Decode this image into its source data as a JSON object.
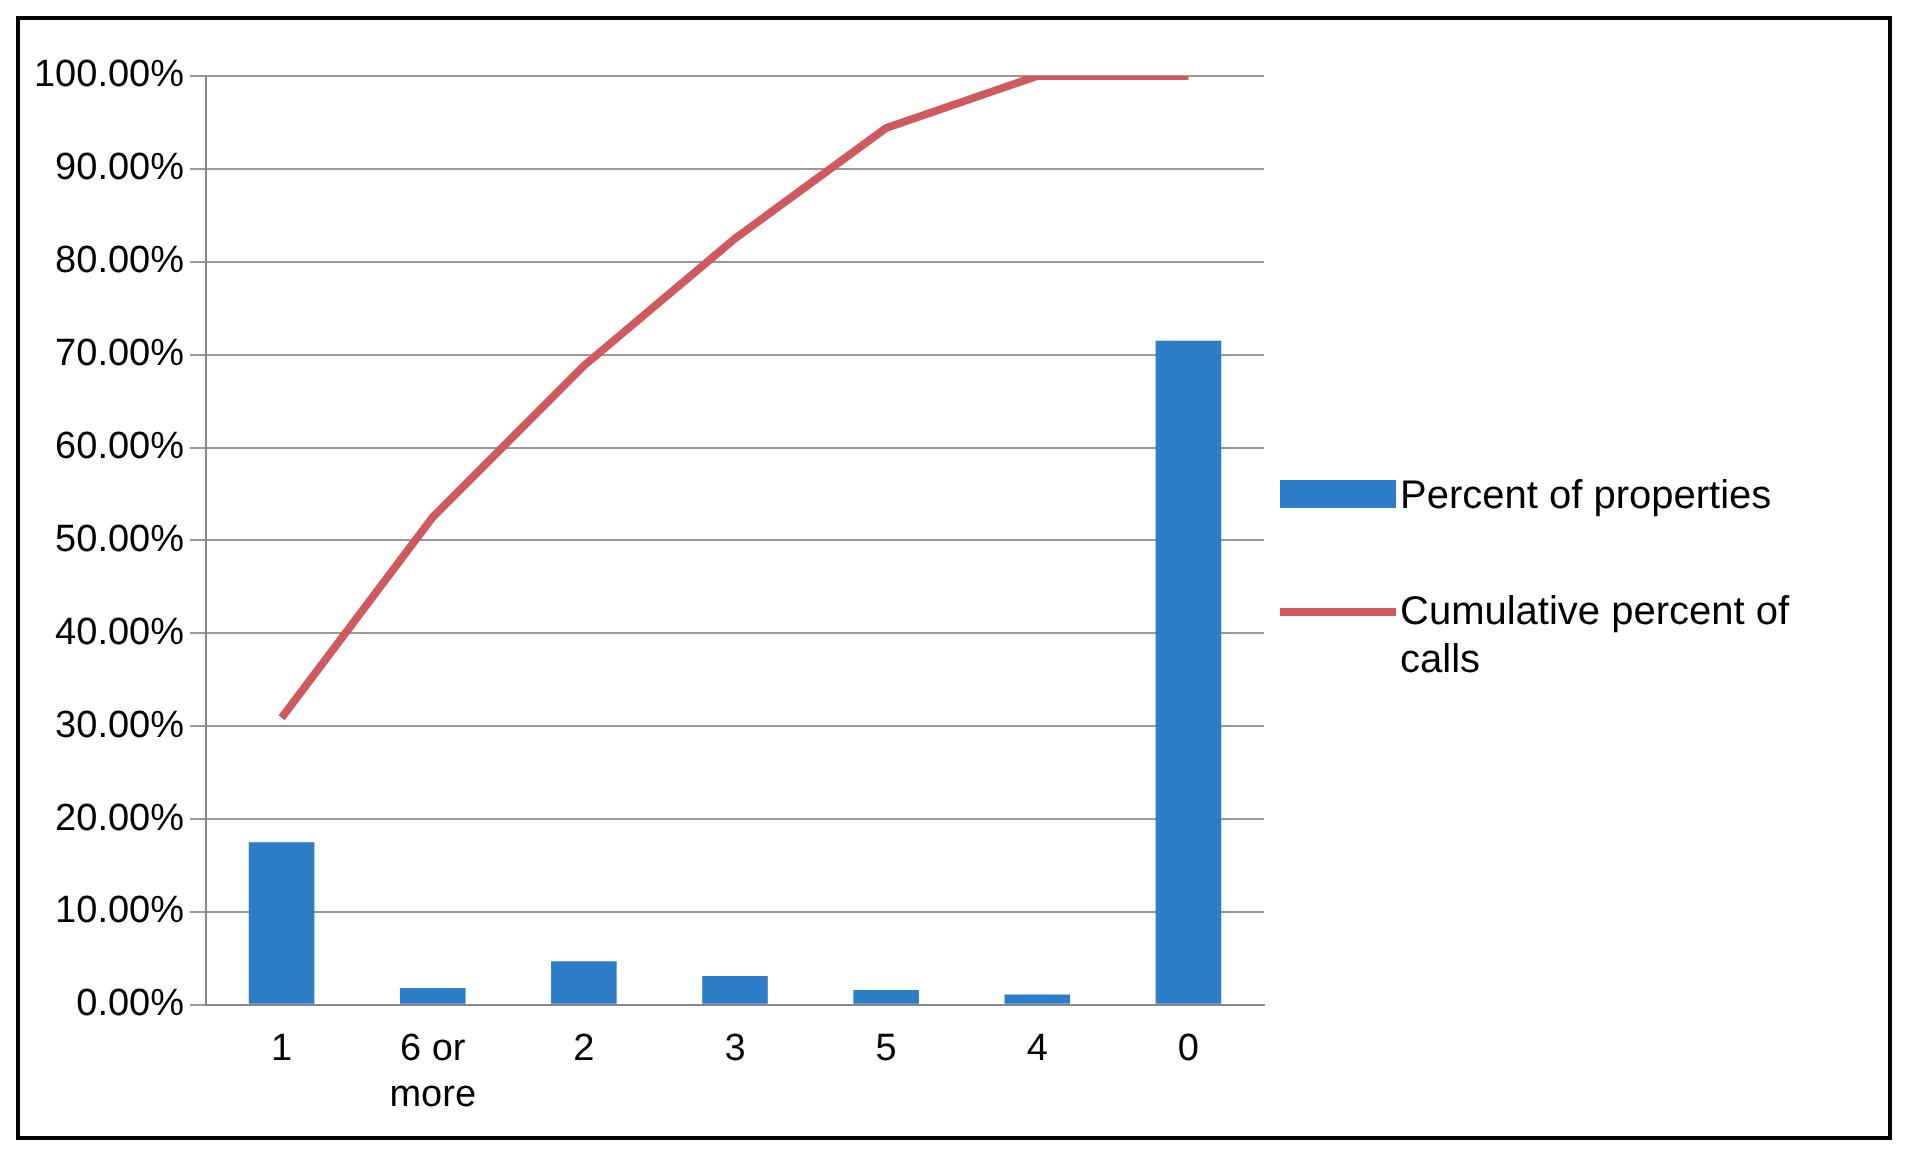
{
  "chart_data": {
    "type": "bar",
    "categories": [
      "1",
      "6 or more",
      "2",
      "3",
      "5",
      "4",
      "0"
    ],
    "series": [
      {
        "name": "Percent of properties",
        "color": "#2e7dc9",
        "values": [
          17.5,
          1.8,
          4.7,
          3.1,
          1.6,
          1.1,
          71.5
        ]
      },
      {
        "name": "Cumulative percent of calls",
        "type": "line",
        "color": "#d0595f",
        "values": [
          30.9,
          52.5,
          68.8,
          82.5,
          94.4,
          100,
          100
        ]
      }
    ],
    "ylim": [
      0,
      100
    ],
    "yticks": [
      {
        "value": 0,
        "label": "0.00%"
      },
      {
        "value": 10,
        "label": "10.00%"
      },
      {
        "value": 20,
        "label": "20.00%"
      },
      {
        "value": 30,
        "label": "30.00%"
      },
      {
        "value": 40,
        "label": "40.00%"
      },
      {
        "value": 50,
        "label": "50.00%"
      },
      {
        "value": 60,
        "label": "60.00%"
      },
      {
        "value": 70,
        "label": "70.00%"
      },
      {
        "value": 80,
        "label": "80.00%"
      },
      {
        "value": 90,
        "label": "90.00%"
      },
      {
        "value": 100,
        "label": "100.00%"
      }
    ],
    "grid": "y",
    "legend": "right",
    "marker": "none",
    "line_style": "solid"
  }
}
